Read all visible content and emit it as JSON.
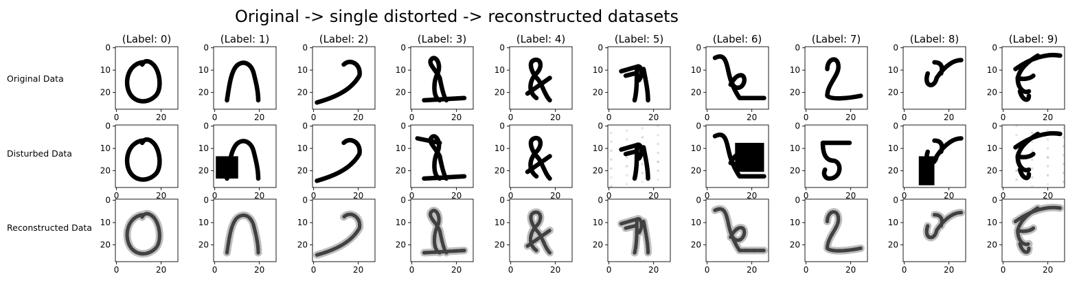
{
  "chart_data": {
    "type": "image_grid",
    "title": "Original -> single distorted -> reconstructed datasets",
    "row_labels": [
      "Original Data",
      "Disturbed Data",
      "Reconstructed Data"
    ],
    "column_titles": [
      "(Label: 0)",
      "(Label: 1)",
      "(Label: 2)",
      "(Label: 3)",
      "(Label: 4)",
      "(Label: 5)",
      "(Label: 6)",
      "(Label: 7)",
      "(Label: 8)",
      "(Label: 9)"
    ],
    "image_size": [
      28,
      28
    ],
    "colormap": "binary",
    "axis": {
      "xticks": [
        0,
        20
      ],
      "xtick_labels": [
        "0",
        "20"
      ],
      "yticks": [
        0,
        10,
        20
      ],
      "ytick_labels": [
        "0",
        "10",
        "20"
      ]
    },
    "occlusions": [
      {
        "row": 1,
        "column": 1,
        "x_range": [
          1,
          11
        ],
        "y_range": [
          14,
          24
        ]
      },
      {
        "row": 1,
        "column": 6,
        "x_range": [
          13,
          26
        ],
        "y_range": [
          8,
          21
        ]
      },
      {
        "row": 1,
        "column": 8,
        "x_range": [
          7,
          14
        ],
        "y_range": [
          14,
          27
        ]
      }
    ]
  }
}
